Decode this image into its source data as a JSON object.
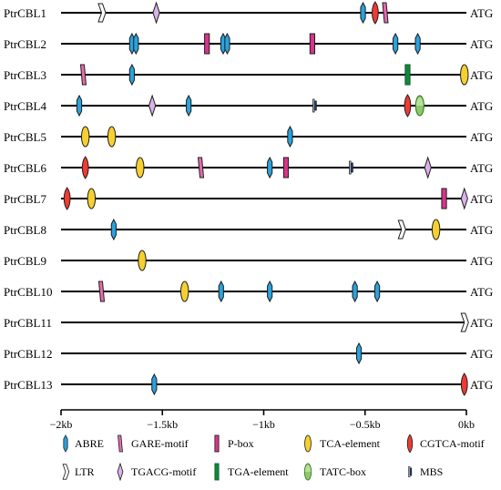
{
  "axis": {
    "tick_labels": [
      "−2kb",
      "−1.5kb",
      "−1kb",
      "−0.5kb",
      "0kb"
    ],
    "tick_values": [
      -2,
      -1.5,
      -1,
      -0.5,
      0
    ],
    "range_kb": [
      -2,
      0
    ]
  },
  "atg_label": "ATG",
  "element_styles": {
    "ABRE": {
      "shape": "hex-tall",
      "fill": "#29a3dd",
      "stroke": "#1d1d1d"
    },
    "GARE-motif": {
      "shape": "slant-rect",
      "fill": "#e76bb0",
      "stroke": "#1d1d1d"
    },
    "P-box": {
      "shape": "rect-tall",
      "fill": "#d8348b",
      "stroke": "#1d1d1d"
    },
    "TCA-element": {
      "shape": "ellipse",
      "fill": "#f6d02f",
      "stroke": "#1d1d1d"
    },
    "CGTCA-motif": {
      "shape": "drop",
      "fill": "#ee3b34",
      "stroke": "#1d1d1d"
    },
    "LTR": {
      "shape": "chevron",
      "fill": "#ffffff",
      "stroke": "#1d1d1d"
    },
    "TGACG-motif": {
      "shape": "diamond",
      "fill": "#d9b3e8",
      "stroke": "#1d1d1d"
    },
    "TGA-element": {
      "shape": "rect-tall",
      "fill": "#13873d",
      "stroke": "#0d5a2a"
    },
    "TATC-box": {
      "shape": "ellipse-split",
      "fill": "#8dc96b",
      "stroke": "#3f7d2f"
    },
    "MBS": {
      "shape": "mbs",
      "fill": "#1c3f8f",
      "stroke": "#1d1d1d"
    }
  },
  "genes": [
    {
      "name": "PtrCBL1",
      "elements": [
        {
          "type": "LTR",
          "x": -1.8
        },
        {
          "type": "TGACG-motif",
          "x": -1.53
        },
        {
          "type": "ABRE",
          "x": -0.51
        },
        {
          "type": "CGTCA-motif",
          "x": -0.45
        },
        {
          "type": "GARE-motif",
          "x": -0.4
        }
      ]
    },
    {
      "name": "PtrCBL2",
      "elements": [
        {
          "type": "ABRE",
          "x": -1.65
        },
        {
          "type": "ABRE",
          "x": -1.63
        },
        {
          "type": "P-box",
          "x": -1.28
        },
        {
          "type": "ABRE",
          "x": -1.2
        },
        {
          "type": "ABRE",
          "x": -1.18
        },
        {
          "type": "P-box",
          "x": -0.76
        },
        {
          "type": "ABRE",
          "x": -0.35
        },
        {
          "type": "ABRE",
          "x": -0.24
        }
      ]
    },
    {
      "name": "PtrCBL3",
      "elements": [
        {
          "type": "GARE-motif",
          "x": -1.89
        },
        {
          "type": "ABRE",
          "x": -1.65
        },
        {
          "type": "TGA-element",
          "x": -0.29
        },
        {
          "type": "TCA-element",
          "x": -0.01
        }
      ]
    },
    {
      "name": "PtrCBL4",
      "elements": [
        {
          "type": "ABRE",
          "x": -1.91
        },
        {
          "type": "TGACG-motif",
          "x": -1.55
        },
        {
          "type": "ABRE",
          "x": -1.37
        },
        {
          "type": "MBS",
          "x": -0.75
        },
        {
          "type": "CGTCA-motif",
          "x": -0.29
        },
        {
          "type": "TATC-box",
          "x": -0.23
        }
      ]
    },
    {
      "name": "PtrCBL5",
      "elements": [
        {
          "type": "TCA-element",
          "x": -1.88
        },
        {
          "type": "TCA-element",
          "x": -1.75
        },
        {
          "type": "ABRE",
          "x": -0.87
        }
      ]
    },
    {
      "name": "PtrCBL6",
      "elements": [
        {
          "type": "CGTCA-motif",
          "x": -1.88
        },
        {
          "type": "TCA-element",
          "x": -1.61
        },
        {
          "type": "GARE-motif",
          "x": -1.31
        },
        {
          "type": "ABRE",
          "x": -0.97
        },
        {
          "type": "P-box",
          "x": -0.89
        },
        {
          "type": "MBS",
          "x": -0.57
        },
        {
          "type": "TGACG-motif",
          "x": -0.19
        }
      ]
    },
    {
      "name": "PtrCBL7",
      "elements": [
        {
          "type": "CGTCA-motif",
          "x": -1.97
        },
        {
          "type": "TCA-element",
          "x": -1.85
        },
        {
          "type": "P-box",
          "x": -0.11
        },
        {
          "type": "TGACG-motif",
          "x": -0.01
        }
      ]
    },
    {
      "name": "PtrCBL8",
      "elements": [
        {
          "type": "ABRE",
          "x": -1.74
        },
        {
          "type": "LTR",
          "x": -0.32
        },
        {
          "type": "TCA-element",
          "x": -0.15
        }
      ]
    },
    {
      "name": "PtrCBL9",
      "elements": [
        {
          "type": "TCA-element",
          "x": -1.6
        }
      ]
    },
    {
      "name": "PtrCBL10",
      "elements": [
        {
          "type": "GARE-motif",
          "x": -1.8
        },
        {
          "type": "TCA-element",
          "x": -1.39
        },
        {
          "type": "ABRE",
          "x": -1.21
        },
        {
          "type": "ABRE",
          "x": -0.97
        },
        {
          "type": "ABRE",
          "x": -0.55
        },
        {
          "type": "ABRE",
          "x": -0.44
        }
      ]
    },
    {
      "name": "PtrCBL11",
      "elements": [
        {
          "type": "LTR",
          "x": -0.01
        }
      ]
    },
    {
      "name": "PtrCBL12",
      "elements": [
        {
          "type": "ABRE",
          "x": -0.53
        }
      ]
    },
    {
      "name": "PtrCBL13",
      "elements": [
        {
          "type": "ABRE",
          "x": -1.54
        },
        {
          "type": "CGTCA-motif",
          "x": -0.01
        }
      ]
    }
  ],
  "legend": [
    {
      "type": "ABRE",
      "label": "ABRE"
    },
    {
      "type": "GARE-motif",
      "label": "GARE-motif"
    },
    {
      "type": "P-box",
      "label": "P-box"
    },
    {
      "type": "TCA-element",
      "label": "TCA-element"
    },
    {
      "type": "CGTCA-motif",
      "label": "CGTCA-motif"
    },
    {
      "type": "LTR",
      "label": "LTR"
    },
    {
      "type": "TGACG-motif",
      "label": "TGACG-motif"
    },
    {
      "type": "TGA-element",
      "label": "TGA-element"
    },
    {
      "type": "TATC-box",
      "label": "TATC-box"
    },
    {
      "type": "MBS",
      "label": "MBS"
    }
  ]
}
